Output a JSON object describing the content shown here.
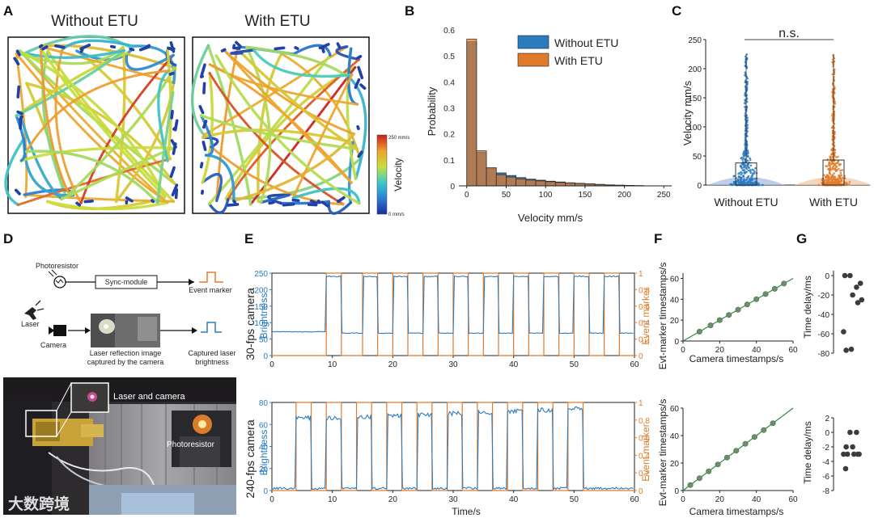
{
  "panel_labels": [
    "A",
    "B",
    "C",
    "D",
    "E",
    "F",
    "G"
  ],
  "panelA": {
    "titles": [
      "Without ETU",
      "With ETU"
    ],
    "colorbar": {
      "label": "Velocity",
      "top": "250 mm/s",
      "bottom": "0 mm/s"
    }
  },
  "panelD": {
    "photoresistor": "Photoresistor",
    "sync": "Sync-module",
    "event_marker": "Event marker",
    "laser": "Laser",
    "camera": "Camera",
    "reflection": [
      "Laser reflection image",
      "captured by the camera"
    ],
    "captured": [
      "Captured laser",
      "brightness"
    ],
    "photo_labels": [
      "Laser and camera",
      "Photoresistor"
    ],
    "watermark": "大数跨境"
  },
  "colors": {
    "blue": "#2b7bbf",
    "orange": "#e07b2c",
    "green": "#2f8a3c",
    "marker": "#6b8e6b",
    "dot": "#3c3c3c",
    "bar_edge": "#2a2a2a"
  },
  "chart_data": [
    {
      "id": "B",
      "type": "bar",
      "xlabel": "Velocity mm/s",
      "ylabel": "Probability",
      "xlim": [
        -10,
        260
      ],
      "ylim": [
        0,
        0.6
      ],
      "xticks": [
        0,
        50,
        100,
        150,
        200,
        250
      ],
      "yticks": [
        0,
        0.1,
        0.2,
        0.3,
        0.4,
        0.5,
        0.6
      ],
      "bin_width": 12.5,
      "bin_starts": [
        0,
        12.5,
        25,
        37.5,
        50,
        62.5,
        75,
        87.5,
        100,
        112.5,
        125,
        137.5,
        150,
        162.5,
        175,
        187.5,
        200,
        212.5
      ],
      "series": [
        {
          "name": "Without ETU",
          "values": [
            0.555,
            0.13,
            0.068,
            0.05,
            0.04,
            0.032,
            0.026,
            0.022,
            0.018,
            0.015,
            0.012,
            0.01,
            0.008,
            0.006,
            0.004,
            0.003,
            0.002,
            0.001
          ]
        },
        {
          "name": "With ETU",
          "values": [
            0.565,
            0.135,
            0.07,
            0.043,
            0.034,
            0.027,
            0.022,
            0.019,
            0.016,
            0.013,
            0.011,
            0.009,
            0.007,
            0.005,
            0.003,
            0.002,
            0.0015,
            0.001
          ]
        }
      ],
      "legend": "top-right"
    },
    {
      "id": "C",
      "type": "violin",
      "ylabel": "Velocity mm/s",
      "categories": [
        "Without ETU",
        "With ETU"
      ],
      "ylim": [
        0,
        250
      ],
      "yticks": [
        0,
        50,
        100,
        150,
        200,
        250
      ],
      "box": [
        {
          "q1": 0,
          "q3": 38,
          "max": 225
        },
        {
          "q1": 0,
          "q3": 43,
          "max": 225
        }
      ],
      "annotation": "n.s."
    },
    {
      "id": "E1",
      "type": "line",
      "ylabel_left": "Brightness",
      "ylabel_right": "Event marker",
      "side_label": "30-fps camera",
      "xlim": [
        0,
        60
      ],
      "xticks": [
        0,
        10,
        20,
        30,
        40,
        50,
        60
      ],
      "ylim_left": [
        0,
        250
      ],
      "yticks_left": [
        0,
        50,
        100,
        150,
        200,
        250
      ],
      "ylim_right": [
        0,
        1
      ],
      "yticks_right": [
        0,
        0.2,
        0.4,
        0.6,
        0.8,
        1
      ],
      "yticklabels_right": [
        "0",
        "0.2",
        "0.4",
        "0.6",
        "0.8",
        "1"
      ],
      "pulses_on": [
        9,
        15,
        20,
        25,
        30,
        35,
        40,
        45,
        50,
        55
      ],
      "pulse_width": 2.5,
      "brightness_high": 240,
      "brightness_low": 68,
      "brightness_base": 72
    },
    {
      "id": "E2",
      "type": "line",
      "xlabel": "Time/s",
      "ylabel_left": "Brightness",
      "ylabel_right": "Event marker",
      "side_label": "240-fps camera",
      "xlim": [
        0,
        60
      ],
      "xticks": [
        0,
        10,
        20,
        30,
        40,
        50,
        60
      ],
      "ylim_left": [
        0,
        80
      ],
      "yticks_left": [
        0,
        20,
        40,
        60,
        80
      ],
      "ylim_right": [
        0,
        1
      ],
      "yticks_right": [
        0,
        0.2,
        0.4,
        0.6,
        0.8,
        1
      ],
      "yticklabels_right": [
        "0",
        "0.2",
        "0.4",
        "0.6",
        "0.8",
        "1"
      ],
      "pulses_on": [
        4,
        9,
        14,
        19,
        24,
        29,
        34,
        39,
        44,
        49
      ],
      "pulse_width": 2.5,
      "brightness_high": [
        66,
        66,
        67,
        68,
        69,
        70,
        71,
        72,
        73,
        75
      ],
      "brightness_base": 2
    },
    {
      "id": "F1",
      "type": "scatter",
      "xlabel": "Camera timestamps/s",
      "ylabel": "Evt-marker timestamps/s",
      "xlim": [
        0,
        60
      ],
      "ylim": [
        0,
        65
      ],
      "xticks": [
        0,
        20,
        40,
        60
      ],
      "yticks": [
        0,
        20,
        40,
        60
      ],
      "x": [
        9,
        15,
        20,
        25,
        30,
        35,
        40,
        45,
        50,
        55
      ],
      "y": [
        9,
        15,
        20,
        25,
        30,
        35,
        40,
        45,
        50,
        55
      ]
    },
    {
      "id": "F2",
      "type": "scatter",
      "xlabel": "Camera timestamps/s",
      "ylabel": "Evt-marker timestamps/s",
      "xlim": [
        0,
        60
      ],
      "ylim": [
        0,
        60
      ],
      "xticks": [
        0,
        20,
        40,
        60
      ],
      "yticks": [
        0,
        20,
        40,
        60
      ],
      "x": [
        4,
        9,
        14,
        19,
        24,
        29,
        34,
        39,
        44,
        49
      ],
      "y": [
        4,
        9,
        14,
        19,
        24,
        29,
        34,
        39,
        44,
        49
      ]
    },
    {
      "id": "G1",
      "type": "scatter",
      "ylabel": "Time delay/ms",
      "ylim": [
        -80,
        5
      ],
      "yticks": [
        0,
        -20,
        -40,
        -60,
        -80
      ],
      "yticklabels": [
        "0",
        "-20",
        "-40",
        "-60",
        "-80"
      ],
      "x": [
        0.25,
        0.45,
        0.7,
        0.85,
        0.55,
        0.2,
        0.3,
        0.5,
        0.75,
        0.9
      ],
      "y": [
        0,
        0,
        -12,
        -8,
        -20,
        -58,
        -77,
        -76,
        -28,
        -25
      ]
    },
    {
      "id": "G2",
      "type": "scatter",
      "ylabel": "Time delay/ms",
      "ylim": [
        -8,
        2
      ],
      "yticks": [
        2,
        0,
        -2,
        -4,
        -6,
        -8
      ],
      "yticklabels": [
        "2",
        "0",
        "-2",
        "-4",
        "-6",
        "-8"
      ],
      "x": [
        0.45,
        0.7,
        0.3,
        0.55,
        0.8,
        0.2,
        0.35,
        0.6,
        0.75,
        0.28
      ],
      "y": [
        0,
        0,
        -2,
        -2,
        -3,
        -3,
        -3,
        -3,
        -3,
        -5
      ]
    }
  ]
}
